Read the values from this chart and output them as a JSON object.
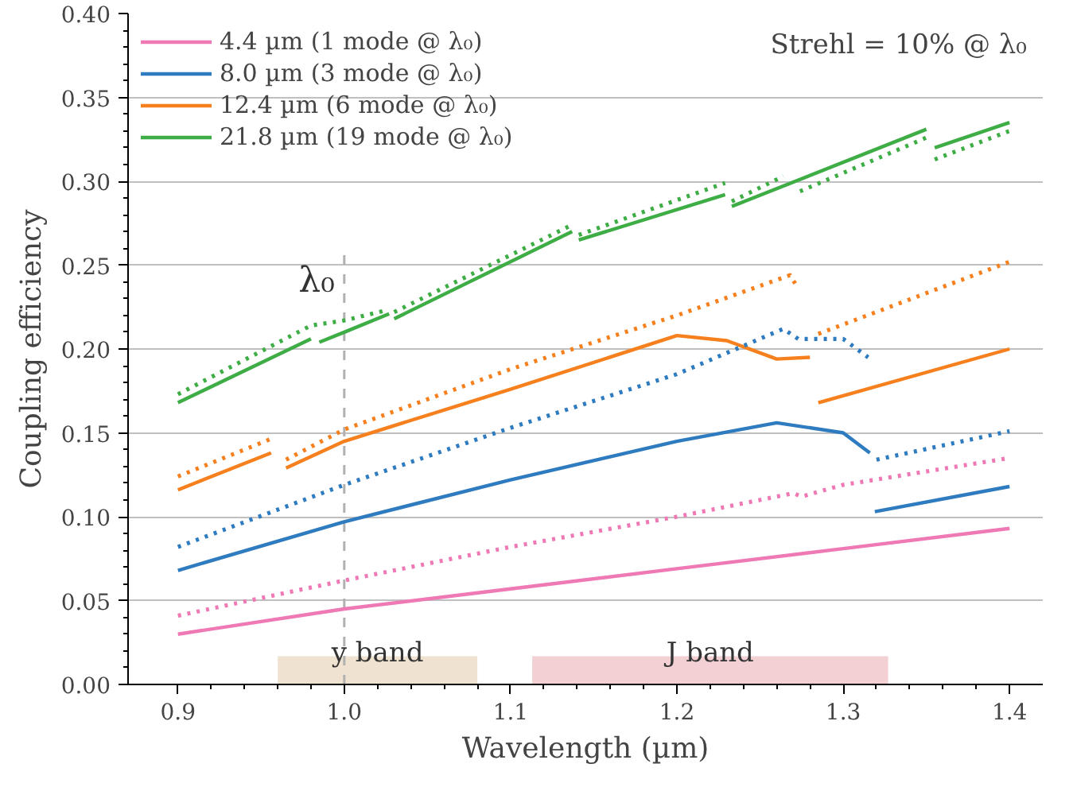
{
  "chart_data": {
    "type": "line",
    "xlabel": "Wavelength (µm)",
    "ylabel": "Coupling efficiency",
    "xlim": [
      0.87,
      1.42
    ],
    "ylim": [
      0,
      0.4
    ],
    "xticks": [
      0.9,
      {
        "value": 1.0,
        "label": "1.0"
      },
      1.1,
      1.2,
      1.3,
      1.4
    ],
    "yticks": [
      {
        "value": 0,
        "label": "0.00"
      },
      0.05,
      {
        "value": 0.1,
        "label": "0.10"
      },
      0.15,
      {
        "value": 0.2,
        "label": "0.20"
      },
      0.25,
      {
        "value": 0.3,
        "label": "0.30"
      },
      0.35,
      {
        "value": 0.4,
        "label": "0.40"
      }
    ],
    "grid": "y",
    "legend": "top left",
    "marker": "none",
    "annotations": [
      "Strehl = 10% @ λ₀"
    ],
    "ref_lines": [
      {
        "axis": "x",
        "value": 1.0,
        "label": "λ₀",
        "color": "#b0b0b0",
        "line_style": "dashed"
      }
    ],
    "bands": [
      {
        "axis": "x",
        "from": 0.96,
        "to": 1.08,
        "label": "y band",
        "color": "#f0e2d0"
      },
      {
        "axis": "x",
        "from": 1.113,
        "to": 1.327,
        "label": "J band",
        "color": "#f2d0d4"
      }
    ],
    "series": [
      {
        "name": "4.4 µm (1 mode @ λ₀)",
        "color": "#ee79b5",
        "line_style": "solid",
        "x": [
          0.9,
          1.0,
          1.1,
          1.2,
          1.3,
          1.4
        ],
        "values": [
          0.03,
          0.045,
          0.057,
          0.069,
          0.081,
          0.093
        ]
      },
      {
        "name": "8.0 µm (3 mode @ λ₀)",
        "color": "#2e7bbf",
        "line_style": "solid",
        "x": [
          0.9,
          1.0,
          1.1,
          1.2,
          1.26,
          1.3,
          1.316,
          1.318,
          1.319,
          1.4
        ],
        "values": [
          0.068,
          0.097,
          0.122,
          0.145,
          0.156,
          0.15,
          0.138,
          null,
          0.103,
          0.118
        ]
      },
      {
        "name": "12.4 µm (6 mode @ λ₀)",
        "color": "#f7801e",
        "line_style": "solid",
        "x": [
          0.9,
          0.956,
          0.96,
          0.965,
          1.0,
          1.1,
          1.2,
          1.23,
          1.26,
          1.28,
          1.283,
          1.285,
          1.4
        ],
        "values": [
          0.116,
          0.138,
          null,
          0.129,
          0.145,
          0.176,
          0.208,
          0.205,
          0.194,
          0.195,
          null,
          0.168,
          0.2
        ]
      },
      {
        "name": "21.8 µm (19 mode @ λ₀)",
        "color": "#3fad45",
        "line_style": "solid",
        "x": [
          0.9,
          0.98,
          0.983,
          0.985,
          1.0,
          1.027,
          1.029,
          1.03,
          1.137,
          1.139,
          1.141,
          1.229,
          1.231,
          1.233,
          1.35,
          1.352,
          1.355,
          1.4
        ],
        "values": [
          0.168,
          0.206,
          null,
          0.204,
          0.21,
          0.221,
          null,
          0.218,
          0.27,
          null,
          0.265,
          0.292,
          null,
          0.285,
          0.331,
          null,
          0.32,
          0.335
        ]
      },
      {
        "color": "#ee79b5",
        "line_style": "dotted",
        "x": [
          0.9,
          1.0,
          1.1,
          1.2,
          1.27,
          1.275,
          1.3,
          1.4
        ],
        "values": [
          0.041,
          0.062,
          0.082,
          0.1,
          0.114,
          0.112,
          0.119,
          0.135
        ]
      },
      {
        "color": "#2e7bbf",
        "line_style": "dotted",
        "x": [
          0.9,
          1.0,
          1.1,
          1.2,
          1.264,
          1.273,
          1.3,
          1.315,
          1.318,
          1.32,
          1.4
        ],
        "values": [
          0.082,
          0.119,
          0.153,
          0.185,
          0.212,
          0.206,
          0.206,
          0.195,
          null,
          0.134,
          0.151
        ]
      },
      {
        "color": "#f7801e",
        "line_style": "dotted",
        "x": [
          0.9,
          0.955,
          0.96,
          0.965,
          1.0,
          1.1,
          1.2,
          1.268,
          1.273,
          1.28,
          1.285,
          1.4
        ],
        "values": [
          0.124,
          0.146,
          null,
          0.134,
          0.152,
          0.188,
          0.22,
          0.244,
          0.236,
          null,
          0.209,
          0.252
        ]
      },
      {
        "color": "#3fad45",
        "line_style": "dotted",
        "x": [
          0.9,
          0.98,
          1.0,
          1.025,
          1.028,
          1.03,
          1.137,
          1.139,
          1.141,
          1.229,
          1.231,
          1.233,
          1.264,
          1.27,
          1.274,
          1.35,
          1.352,
          1.355,
          1.4
        ],
        "values": [
          0.173,
          0.214,
          0.217,
          0.223,
          null,
          0.222,
          0.274,
          null,
          0.268,
          0.299,
          null,
          0.288,
          0.303,
          null,
          0.294,
          0.326,
          null,
          0.313,
          0.33
        ]
      }
    ]
  }
}
